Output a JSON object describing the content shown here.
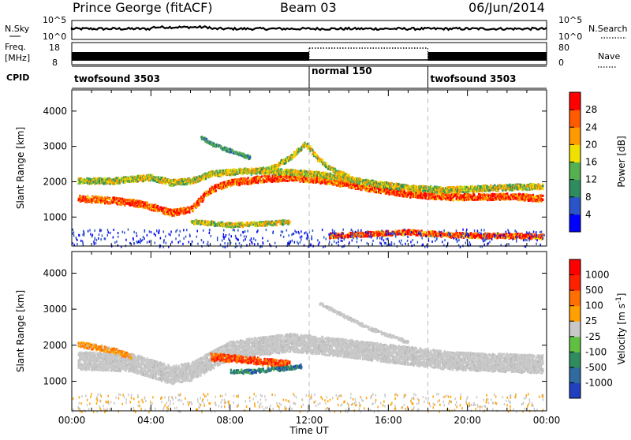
{
  "header": {
    "station": "Prince George (fitACF)",
    "beam": "Beam 03",
    "date": "06/Jun/2014"
  },
  "top_panels": {
    "nsky_label": "N.Sky",
    "nsky_ticks": [
      "10^5",
      "10^0"
    ],
    "nsearch_label": "N.Search",
    "nsearch_ticks": [
      "10^5",
      "10^0"
    ],
    "freq_label": "Freq.",
    "freq_unit": "[MHz]",
    "freq_ticks": [
      "18",
      "8"
    ],
    "nave_label": "Nave",
    "nave_ticks": [
      "80",
      "0"
    ],
    "cpid_label": "CPID",
    "cpid_segments": [
      {
        "label": "twofsound 3503",
        "start_h": 0,
        "end_h": 12
      },
      {
        "label": "normal 150",
        "start_h": 12,
        "end_h": 18
      },
      {
        "label": "twofsound 3503",
        "start_h": 18,
        "end_h": 24
      }
    ]
  },
  "power_colorbar": {
    "label": "Power [dB]",
    "ticks": [
      "28",
      "24",
      "20",
      "16",
      "12",
      "8",
      "4"
    ],
    "colors": [
      "#0000ff",
      "#2a54c8",
      "#2e8c5e",
      "#55b050",
      "#f0e000",
      "#ff9a00",
      "#ff5a00",
      "#ff0000"
    ]
  },
  "velocity_colorbar": {
    "label": "Velocity [m s",
    "label_sup": "-1",
    "label_close": "]",
    "ticks": [
      "1000",
      "500",
      "100",
      "25",
      "-25",
      "-100",
      "-500",
      "-1000"
    ],
    "colors": [
      "#2040c0",
      "#2f6aa0",
      "#2e8c5e",
      "#60c040",
      "#c8c8c8",
      "#ffa000",
      "#ff7000",
      "#ff2000",
      "#ff0000"
    ]
  },
  "chart_data": [
    {
      "type": "heatmap",
      "title": "Power",
      "xlabel": "Time UT",
      "ylabel": "Slant Range [km]",
      "x_ticks": [
        "00:00",
        "04:00",
        "08:00",
        "12:00",
        "16:00",
        "20:00",
        "00:00"
      ],
      "xlim_h": [
        0,
        24
      ],
      "y_ticks": [
        1000,
        2000,
        3000,
        4000
      ],
      "ylim": [
        180,
        4600
      ],
      "bands": [
        {
          "name": "main",
          "points": [
            [
              0.3,
              1550
            ],
            [
              2,
              1500
            ],
            [
              3.5,
              1400
            ],
            [
              5,
              1150
            ],
            [
              6,
              1250
            ],
            [
              7,
              1800
            ],
            [
              8,
              2000
            ],
            [
              9.5,
              2100
            ],
            [
              11,
              2150
            ],
            [
              13,
              2050
            ],
            [
              15,
              1850
            ],
            [
              17,
              1680
            ],
            [
              19,
              1600
            ],
            [
              21,
              1600
            ],
            [
              22,
              1620
            ],
            [
              23.8,
              1550
            ]
          ],
          "width": 180,
          "level": "high"
        },
        {
          "name": "upper",
          "points": [
            [
              0.3,
              2050
            ],
            [
              2,
              2050
            ],
            [
              4,
              2150
            ],
            [
              5,
              2000
            ],
            [
              6,
              2050
            ],
            [
              7,
              2250
            ],
            [
              9,
              2350
            ],
            [
              11,
              2300
            ],
            [
              13,
              2200
            ],
            [
              15,
              2000
            ],
            [
              17,
              1850
            ],
            [
              19,
              1800
            ],
            [
              21,
              1850
            ],
            [
              23.8,
              1900
            ]
          ],
          "width": 160,
          "level": "mid"
        },
        {
          "name": "cusp",
          "points": [
            [
              9,
              2300
            ],
            [
              10,
              2400
            ],
            [
              11,
              2700
            ],
            [
              11.8,
              3100
            ],
            [
              12.4,
              2700
            ],
            [
              13,
              2400
            ],
            [
              14,
              2150
            ]
          ],
          "width": 140,
          "level": "mid"
        },
        {
          "name": "lower",
          "points": [
            [
              6,
              900
            ],
            [
              7,
              850
            ],
            [
              8,
              800
            ],
            [
              10,
              850
            ],
            [
              11,
              900
            ]
          ],
          "width": 120,
          "level": "mid"
        },
        {
          "name": "near-range",
          "points": [
            [
              13,
              500
            ],
            [
              15,
              550
            ],
            [
              17,
              600
            ],
            [
              19,
              520
            ],
            [
              21,
              500
            ],
            [
              23.8,
              480
            ]
          ],
          "width": 140,
          "level": "highlow"
        },
        {
          "name": "arc",
          "points": [
            [
              6.5,
              3300
            ],
            [
              7,
              3100
            ],
            [
              8,
              2900
            ],
            [
              9,
              2700
            ]
          ],
          "width": 100,
          "level": "low"
        }
      ]
    },
    {
      "type": "heatmap",
      "title": "Velocity",
      "xlabel": "Time UT",
      "ylabel": "Slant Range [km]",
      "x_ticks": [
        "00:00",
        "04:00",
        "08:00",
        "12:00",
        "16:00",
        "20:00",
        "00:00"
      ],
      "xlim_h": [
        0,
        24
      ],
      "y_ticks": [
        1000,
        2000,
        3000,
        4000
      ],
      "ylim": [
        180,
        4600
      ],
      "bands": [
        {
          "name": "ground-scatter",
          "points": [
            [
              0.3,
              1600
            ],
            [
              3,
              1550
            ],
            [
              5,
              1200
            ],
            [
              6,
              1300
            ],
            [
              8,
              1900
            ],
            [
              11,
              2100
            ],
            [
              13,
              2000
            ],
            [
              16,
              1800
            ],
            [
              19,
              1600
            ],
            [
              23.8,
              1500
            ]
          ],
          "width": 500,
          "level": "gray"
        },
        {
          "name": "west-flow",
          "points": [
            [
              0.3,
              2050
            ],
            [
              2,
              1900
            ],
            [
              3,
              1700
            ]
          ],
          "width": 150,
          "level": "orange"
        },
        {
          "name": "eastward-patch",
          "points": [
            [
              7,
              1700
            ],
            [
              8.5,
              1650
            ],
            [
              10,
              1550
            ],
            [
              11,
              1500
            ]
          ],
          "width": 200,
          "level": "red"
        },
        {
          "name": "toward-radar",
          "points": [
            [
              8,
              1300
            ],
            [
              9,
              1300
            ],
            [
              10,
              1350
            ],
            [
              11,
              1400
            ],
            [
              11.6,
              1450
            ]
          ],
          "width": 110,
          "level": "blue"
        },
        {
          "name": "far-arcs",
          "points": [
            [
              12.5,
              3200
            ],
            [
              13.5,
              2900
            ],
            [
              15,
              2500
            ],
            [
              17,
              2100
            ]
          ],
          "width": 90,
          "level": "gray"
        }
      ]
    }
  ]
}
